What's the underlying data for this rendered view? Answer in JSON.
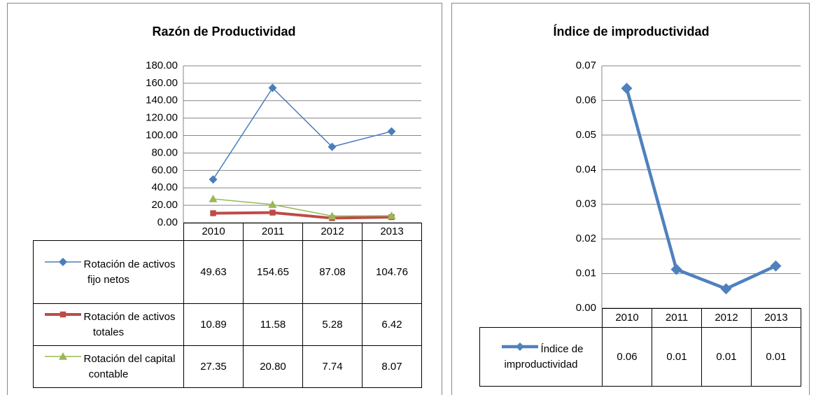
{
  "chart_data": [
    {
      "type": "line",
      "title": "Razón de Productividad",
      "categories": [
        "2010",
        "2011",
        "2012",
        "2013"
      ],
      "series": [
        {
          "name": "Rotación de activos fijo netos",
          "color": "#4a7ebb",
          "marker": "diamond",
          "width": 1.5,
          "values": [
            49.63,
            154.65,
            87.08,
            104.76
          ],
          "value_labels": [
            "49.63",
            "154.65",
            "87.08",
            "104.76"
          ]
        },
        {
          "name": "Rotación de activos totales",
          "color": "#be4b48",
          "marker": "square",
          "width": 4,
          "values": [
            10.89,
            11.58,
            5.28,
            6.42
          ],
          "value_labels": [
            "10.89",
            "11.58",
            "5.28",
            "6.42"
          ]
        },
        {
          "name": "Rotación del capital contable",
          "color": "#98b954",
          "marker": "triangle",
          "width": 1.5,
          "values": [
            27.35,
            20.8,
            7.74,
            8.07
          ],
          "value_labels": [
            "27.35",
            "20.80",
            "7.74",
            "8.07"
          ]
        }
      ],
      "ylim": [
        0,
        180
      ],
      "yticks": [
        {
          "value": 0,
          "label": "0.00"
        },
        {
          "value": 20,
          "label": "20.00"
        },
        {
          "value": 40,
          "label": "40.00"
        },
        {
          "value": 60,
          "label": "60.00"
        },
        {
          "value": 80,
          "label": "80.00"
        },
        {
          "value": 100,
          "label": "100.00"
        },
        {
          "value": 120,
          "label": "120.00"
        },
        {
          "value": 140,
          "label": "140.00"
        },
        {
          "value": 160,
          "label": "160.00"
        },
        {
          "value": 180,
          "label": "180.00"
        }
      ],
      "grid": true
    },
    {
      "type": "line",
      "title": "Índice de improductividad",
      "categories": [
        "2010",
        "2011",
        "2012",
        "2013"
      ],
      "series": [
        {
          "name": "Índice de improductividad",
          "color": "#4f81bd",
          "marker": "diamond",
          "width": 4.5,
          "values": [
            0.0635,
            0.0112,
            0.0056,
            0.0122
          ],
          "value_labels": [
            "0.06",
            "0.01",
            "0.01",
            "0.01"
          ]
        }
      ],
      "ylim": [
        0,
        0.07
      ],
      "yticks": [
        {
          "value": 0,
          "label": "0.00"
        },
        0.01,
        0.02,
        0.03,
        0.04,
        0.05,
        0.06,
        0.07
      ],
      "grid": true
    }
  ]
}
